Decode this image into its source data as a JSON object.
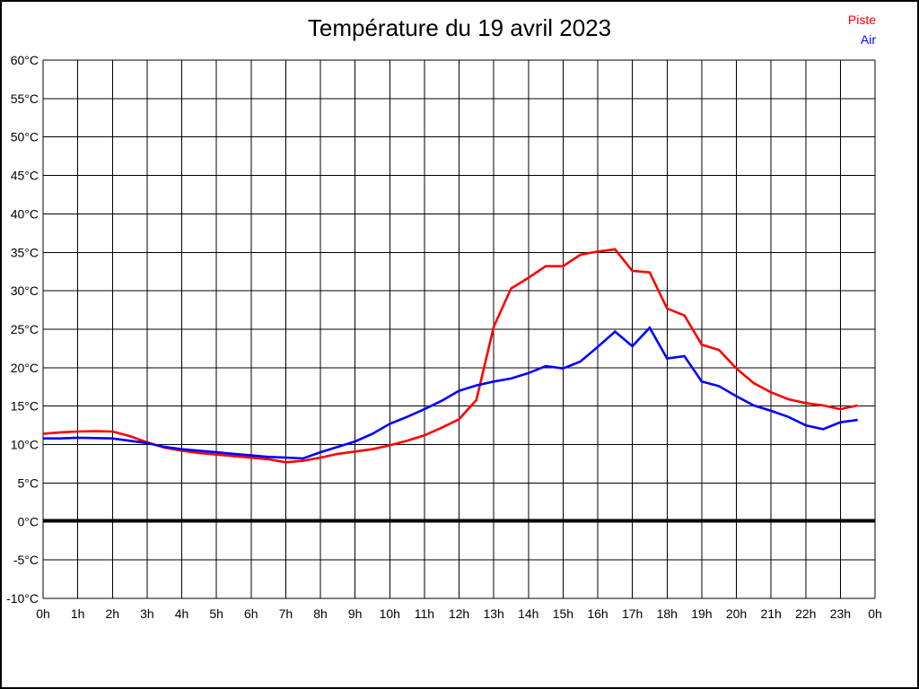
{
  "page": {
    "background_color": "#ffffff",
    "border_color": "#000000"
  },
  "header": {
    "title": "Température du 19 avril 2023"
  },
  "legend": [
    {
      "label": "Piste",
      "color": "#ff0000"
    },
    {
      "label": "Air",
      "color": "#0000ff"
    }
  ],
  "chart_data": {
    "type": "line",
    "title": "Température du 19 avril 2023",
    "xlabel": "",
    "ylabel": "",
    "grid": true,
    "grid_color": "#000000",
    "legend_position": "top-right",
    "xlim": [
      0,
      24
    ],
    "ylim": [
      -10,
      60
    ],
    "y_tick_values": [
      60,
      55,
      50,
      45,
      40,
      35,
      30,
      25,
      20,
      15,
      10,
      5,
      0,
      -5,
      -10
    ],
    "y_tick_labels": [
      "60°C",
      "55°C",
      "50°C",
      "45°C",
      "40°C",
      "35°C",
      "30°C",
      "25°C",
      "20°C",
      "15°C",
      "10°C",
      "5°C",
      "0°C",
      "-5°C",
      "-10°C"
    ],
    "x_tick_values": [
      0,
      1,
      2,
      3,
      4,
      5,
      6,
      7,
      8,
      9,
      10,
      11,
      12,
      13,
      14,
      15,
      16,
      17,
      18,
      19,
      20,
      21,
      22,
      23,
      24
    ],
    "x_tick_labels": [
      "0h",
      "1h",
      "2h",
      "3h",
      "4h",
      "5h",
      "6h",
      "7h",
      "8h",
      "9h",
      "10h",
      "11h",
      "12h",
      "13h",
      "14h",
      "15h",
      "16h",
      "17h",
      "18h",
      "19h",
      "20h",
      "21h",
      "22h",
      "23h",
      "0h"
    ],
    "zero_line": {
      "value": 0,
      "color": "#000000",
      "width": 4
    },
    "x": [
      0,
      0.5,
      1,
      1.5,
      2,
      2.5,
      3,
      3.5,
      4,
      4.5,
      5,
      5.5,
      6,
      6.5,
      7,
      7.5,
      8,
      8.5,
      9,
      9.5,
      10,
      10.5,
      11,
      11.5,
      12,
      12.5,
      13,
      13.5,
      14,
      14.5,
      15,
      15.5,
      16,
      16.5,
      17,
      17.5,
      18,
      18.5,
      19,
      19.5,
      20,
      20.5,
      21,
      21.5,
      22,
      22.5,
      23,
      23.5
    ],
    "series": [
      {
        "name": "Piste",
        "color": "#ff0000",
        "values": [
          11.4,
          11.6,
          11.7,
          11.75,
          11.7,
          11.1,
          10.3,
          9.6,
          9.2,
          8.9,
          8.7,
          8.5,
          8.3,
          8.1,
          7.7,
          7.9,
          8.3,
          8.8,
          9.1,
          9.4,
          9.9,
          10.5,
          11.2,
          12.2,
          13.3,
          15.8,
          25.3,
          30.3,
          31.7,
          33.2,
          33.2,
          34.7,
          35.1,
          35.4,
          32.6,
          32.4,
          27.7,
          26.8,
          23.0,
          22.3,
          19.9,
          18.0,
          16.8,
          15.9,
          15.4,
          15.1,
          14.6,
          15.1
        ]
      },
      {
        "name": "Air",
        "color": "#0000ff",
        "values": [
          10.8,
          10.8,
          10.9,
          10.85,
          10.8,
          10.5,
          10.2,
          9.7,
          9.4,
          9.2,
          9.0,
          8.8,
          8.6,
          8.4,
          8.3,
          8.2,
          9.0,
          9.7,
          10.4,
          11.4,
          12.7,
          13.6,
          14.6,
          15.7,
          17.0,
          17.7,
          18.2,
          18.6,
          19.3,
          20.2,
          19.9,
          20.8,
          22.7,
          24.7,
          22.8,
          25.2,
          21.2,
          21.5,
          18.2,
          17.6,
          16.3,
          15.1,
          14.4,
          13.6,
          12.5,
          12.0,
          12.9,
          13.2
        ]
      }
    ]
  }
}
